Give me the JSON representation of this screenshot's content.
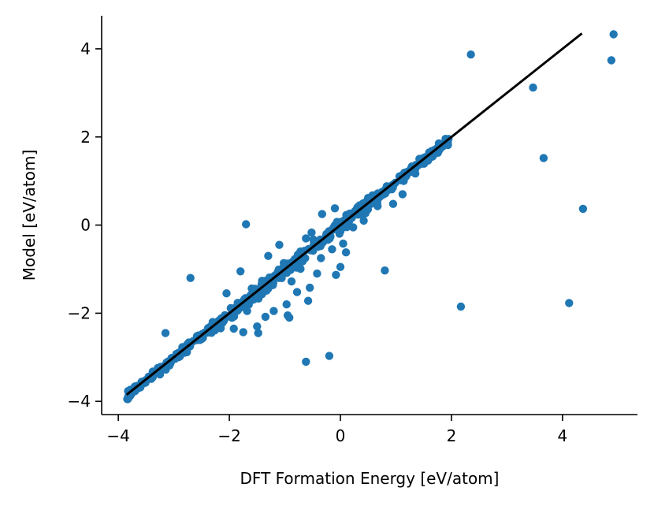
{
  "chart_data": {
    "type": "scatter",
    "title": "",
    "xlabel": "DFT Formation Energy [eV/atom]",
    "ylabel": "Model [eV/atom]",
    "xlim": [
      -4.3,
      5.35
    ],
    "ylim": [
      -4.3,
      4.75
    ],
    "xticks": [
      -4,
      -2,
      0,
      2,
      4
    ],
    "yticks": [
      -4,
      -2,
      0,
      2,
      4
    ],
    "xtick_labels": [
      "−4",
      "−2",
      "0",
      "2",
      "4"
    ],
    "ytick_labels": [
      "−4",
      "−2",
      "0",
      "2",
      "4"
    ],
    "grid": false,
    "point_color": "#1f77b4",
    "line_color": "#000000",
    "reference_line": {
      "x": [
        -3.85,
        4.35
      ],
      "y": [
        -3.85,
        4.35
      ]
    },
    "dense_band": {
      "x_range": [
        -3.85,
        1.95
      ],
      "spread": 0.12,
      "n": 520
    },
    "outliers": [
      {
        "x": 4.92,
        "y": 4.33
      },
      {
        "x": 2.35,
        "y": 3.87
      },
      {
        "x": 4.88,
        "y": 3.74
      },
      {
        "x": 3.47,
        "y": 3.12
      },
      {
        "x": 3.66,
        "y": 1.52
      },
      {
        "x": 4.37,
        "y": 0.37
      },
      {
        "x": 4.12,
        "y": -1.77
      },
      {
        "x": 2.17,
        "y": -1.85
      },
      {
        "x": 0.8,
        "y": -1.03
      },
      {
        "x": 0.95,
        "y": 0.48
      },
      {
        "x": 0.67,
        "y": 0.43
      },
      {
        "x": 0.23,
        "y": -0.05
      },
      {
        "x": 0.42,
        "y": 0.1
      },
      {
        "x": 0.05,
        "y": -0.42
      },
      {
        "x": 0.1,
        "y": -0.62
      },
      {
        "x": 0.0,
        "y": -0.95
      },
      {
        "x": -0.35,
        "y": -0.75
      },
      {
        "x": -0.08,
        "y": -1.13
      },
      {
        "x": -0.42,
        "y": -1.1
      },
      {
        "x": -0.55,
        "y": -1.42
      },
      {
        "x": -0.33,
        "y": 0.25
      },
      {
        "x": -0.52,
        "y": -0.17
      },
      {
        "x": -0.62,
        "y": -0.3
      },
      {
        "x": -0.72,
        "y": -0.6
      },
      {
        "x": -1.3,
        "y": -0.7
      },
      {
        "x": -1.7,
        "y": 0.02
      },
      {
        "x": -1.42,
        "y": -1.35
      },
      {
        "x": -0.78,
        "y": -1.52
      },
      {
        "x": -0.88,
        "y": -1.28
      },
      {
        "x": -0.9,
        "y": -1.02
      },
      {
        "x": -0.97,
        "y": -1.8
      },
      {
        "x": -1.2,
        "y": -1.95
      },
      {
        "x": -0.95,
        "y": -2.05
      },
      {
        "x": -0.58,
        "y": -1.72
      },
      {
        "x": -0.92,
        "y": -2.1
      },
      {
        "x": -1.5,
        "y": -2.3
      },
      {
        "x": -1.48,
        "y": -2.45
      },
      {
        "x": -1.35,
        "y": -2.08
      },
      {
        "x": -0.62,
        "y": -3.1
      },
      {
        "x": -0.2,
        "y": -2.97
      },
      {
        "x": -2.7,
        "y": -1.2
      },
      {
        "x": -3.15,
        "y": -2.45
      },
      {
        "x": -1.92,
        "y": -2.35
      },
      {
        "x": -1.75,
        "y": -2.43
      },
      {
        "x": -2.3,
        "y": -2.2
      },
      {
        "x": -1.68,
        "y": -1.95
      },
      {
        "x": -0.1,
        "y": 0.38
      },
      {
        "x": 1.12,
        "y": 0.7
      },
      {
        "x": 1.35,
        "y": 1.17
      },
      {
        "x": 1.5,
        "y": 1.52
      },
      {
        "x": -1.8,
        "y": -1.05
      },
      {
        "x": -2.05,
        "y": -1.55
      },
      {
        "x": -1.1,
        "y": -0.45
      },
      {
        "x": -0.15,
        "y": -0.55
      }
    ]
  }
}
